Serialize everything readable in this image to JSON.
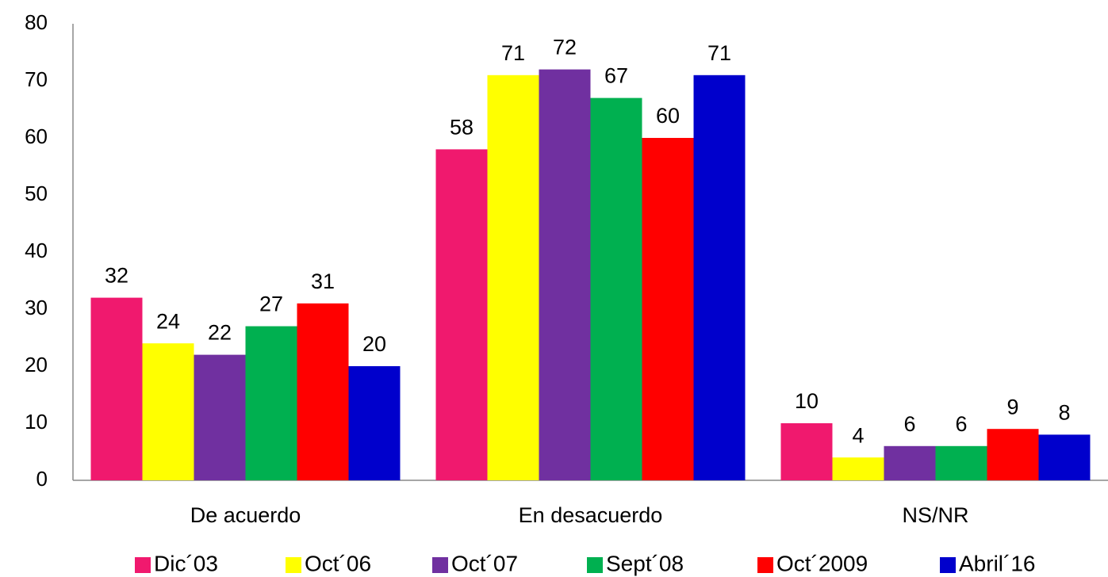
{
  "chart_data": {
    "type": "bar",
    "categories": [
      "De acuerdo",
      "En desacuerdo",
      "NS/NR"
    ],
    "series": [
      {
        "name": "Dic´03",
        "color": "#f0196e",
        "values": [
          32,
          58,
          10
        ]
      },
      {
        "name": "Oct´06",
        "color": "#ffff00",
        "values": [
          24,
          71,
          4
        ]
      },
      {
        "name": "Oct´07",
        "color": "#7030a0",
        "values": [
          22,
          72,
          6
        ]
      },
      {
        "name": "Sept´08",
        "color": "#00b050",
        "values": [
          27,
          67,
          6
        ]
      },
      {
        "name": "Oct´2009",
        "color": "#ff0000",
        "values": [
          31,
          60,
          9
        ]
      },
      {
        "name": "Abril´16",
        "color": "#0000cc",
        "values": [
          20,
          71,
          8
        ]
      }
    ],
    "ylim": [
      0,
      80
    ],
    "yticks": [
      0,
      10,
      20,
      30,
      40,
      50,
      60,
      70,
      80
    ],
    "legend": "bottom"
  }
}
